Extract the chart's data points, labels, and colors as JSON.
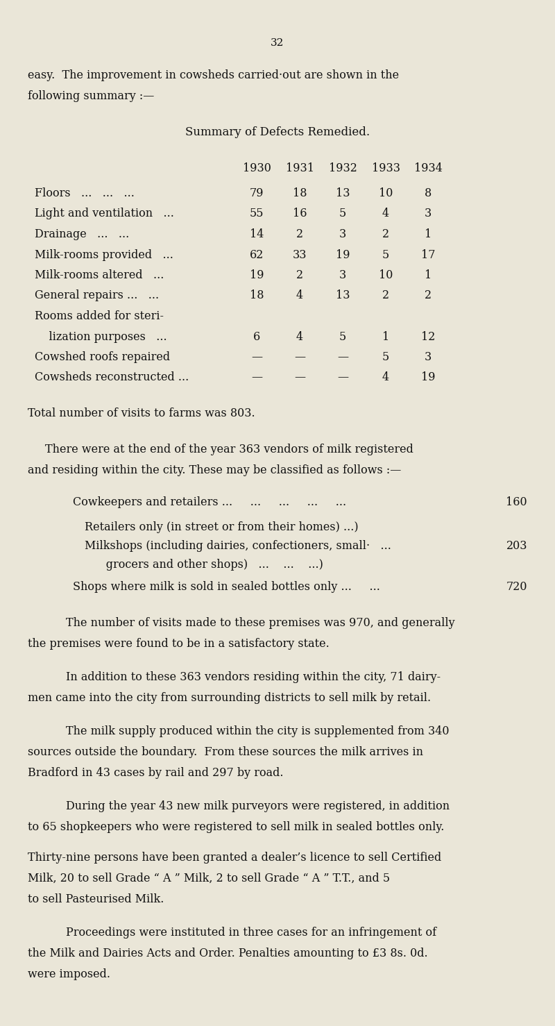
{
  "page_number": "32",
  "bg_color": "#eae6d8",
  "text_color": "#1a1a1a",
  "page_width": 8.0,
  "page_height": 14.78,
  "table_title": "Summary of Defects Remedied.",
  "table_headers": [
    "1930",
    "1931",
    "1932",
    "1933",
    "1934"
  ],
  "table_rows": [
    [
      "Floors   ...   ...   ...",
      "79",
      "18",
      "13",
      "10",
      "8"
    ],
    [
      "Light and ventilation   ...",
      "55",
      "16",
      "5",
      "4",
      "3"
    ],
    [
      "Drainage   ...   ...",
      "14",
      "2",
      "3",
      "2",
      "1"
    ],
    [
      "Milk-rooms provided   ...",
      "62",
      "33",
      "19",
      "5",
      "17"
    ],
    [
      "Milk-rooms altered   ...",
      "19",
      "2",
      "3",
      "10",
      "1"
    ],
    [
      "General repairs ...   ...",
      "18",
      "4",
      "13",
      "2",
      "2"
    ],
    [
      "Rooms added for steri-",
      "",
      "",
      "",
      "",
      ""
    ],
    [
      "    lization purposes   ...",
      "6",
      "4",
      "5",
      "1",
      "12"
    ],
    [
      "Cowshed roofs repaired",
      "—",
      "—",
      "—",
      "5",
      "3"
    ],
    [
      "Cowsheds reconstructed ...",
      "—",
      "—",
      "—",
      "4",
      "19"
    ]
  ],
  "intro_line1": "easy.  The improvement in cowsheds carried·out are shown in the",
  "intro_line2": "following summary :—",
  "para1": "Total number of visits to farms was 803.",
  "para2_line1": "There were at the end of the year 363 vendors of milk registered",
  "para2_line2": "and residing within the city. These may be classified as follows :—",
  "cow_line": "Cowkeepers and retailers ...     ...     ...     ...     ...",
  "cow_val": "160",
  "ret_line": "Retailers only (in street or from their homes) ...)",
  "milk_line": "Milkshops (including dairies, confectioners, small·   ...",
  "milk_val": "203",
  "groc_line": "      grocers and other shops)   ...    ...    ...)",
  "shops_line": "Shops where milk is sold in sealed bottles only ...     ...",
  "shops_val": "720",
  "para3_line1": "The number of visits made to these premises was 970, and generally",
  "para3_line2": "the premises were found to be in a satisfactory state.",
  "para4_line1": "In addition to these 363 vendors residing within the city, 71 dairy-",
  "para4_line2": "men came into the city from surrounding districts to sell milk by retail.",
  "para5_line1": "The milk supply produced within the city is supplemented from 340",
  "para5_line2": "sources outside the boundary.  From these sources the milk arrives in",
  "para5_line3": "Bradford in 43 cases by rail and 297 by road.",
  "para6_line1": "During the year 43 new milk purveyors were registered, in addition",
  "para6_line2": "to 65 shopkeepers who were registered to sell milk in sealed bottles only.",
  "para7_line1": "Thirty-nine persons have been granted a dealer’s licence to sell Certified",
  "para7_line2": "Milk, 20 to sell Grade “ A ” Milk, 2 to sell Grade “ A ” T.T., and 5",
  "para7_line3": "to sell Pasteurised Milk.",
  "para8_line1": "Proceedings were instituted in three cases for an infringement of",
  "para8_line2": "the Milk and Dairies Acts and Order. Penalties amounting to £3 8s. 0d.",
  "para8_line3": "were imposed."
}
